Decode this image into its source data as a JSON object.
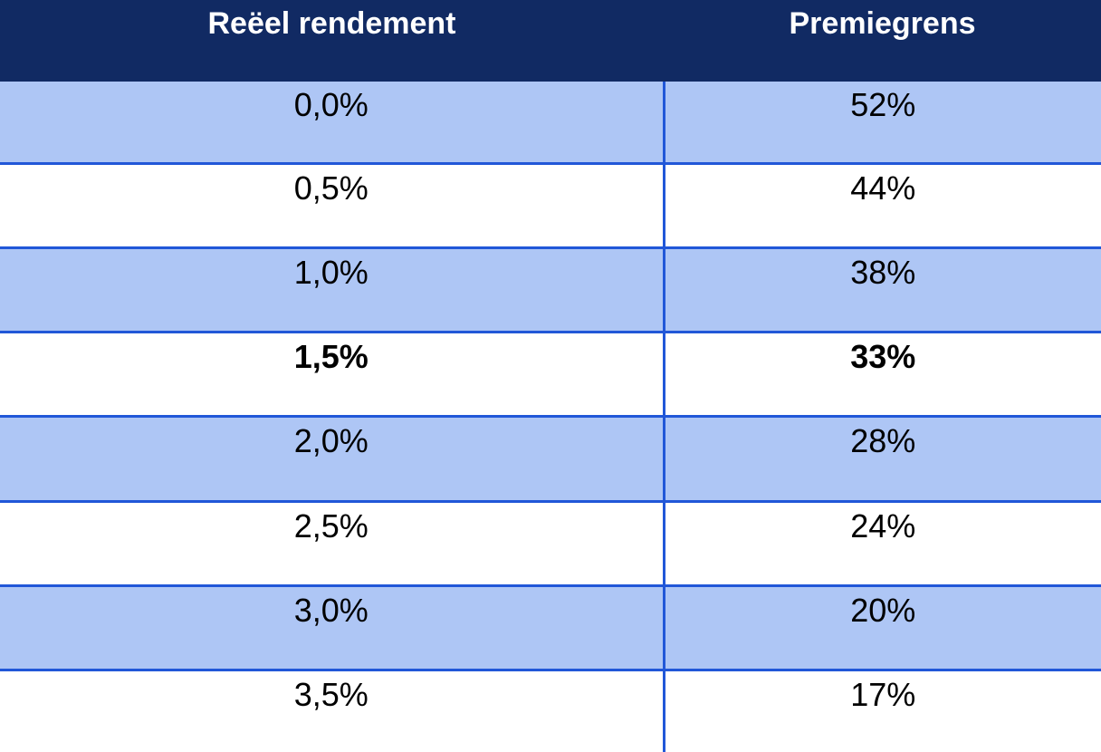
{
  "chart_data": {
    "type": "table",
    "title": "",
    "columns": [
      "Reëel rendement",
      "Premiegrens"
    ],
    "rows": [
      [
        "0,0%",
        "52%"
      ],
      [
        "0,5%",
        "44%"
      ],
      [
        "1,0%",
        "38%"
      ],
      [
        "1,5%",
        "33%"
      ],
      [
        "2,0%",
        "28%"
      ],
      [
        "2,5%",
        "24%"
      ],
      [
        "3,0%",
        "20%"
      ],
      [
        "3,5%",
        "17%"
      ]
    ],
    "rendement_numeric_pct": [
      0.0,
      0.5,
      1.0,
      1.5,
      2.0,
      2.5,
      3.0,
      3.5
    ],
    "premiegrens_numeric_pct": [
      52,
      44,
      38,
      33,
      28,
      24,
      20,
      17
    ],
    "highlighted_row_index": 3,
    "highlight_style": "bold",
    "layout": "striped rows, navy header, blue rules, no outer border"
  },
  "table": {
    "header": {
      "col1": "Reëel rendement",
      "col2": "Premiegrens"
    },
    "rows": [
      {
        "rendement": "0,0%",
        "premiegrens": "52%",
        "bold": false
      },
      {
        "rendement": "0,5%",
        "premiegrens": "44%",
        "bold": false
      },
      {
        "rendement": "1,0%",
        "premiegrens": "38%",
        "bold": false
      },
      {
        "rendement": "1,5%",
        "premiegrens": "33%",
        "bold": true
      },
      {
        "rendement": "2,0%",
        "premiegrens": "28%",
        "bold": false
      },
      {
        "rendement": "2,5%",
        "premiegrens": "24%",
        "bold": false
      },
      {
        "rendement": "3,0%",
        "premiegrens": "20%",
        "bold": false
      },
      {
        "rendement": "3,5%",
        "premiegrens": "17%",
        "bold": false
      }
    ]
  },
  "colors": {
    "header_bg": "#112a63",
    "header_text": "#ffffff",
    "stripe_bg": "#aec6f5",
    "white_bg": "#ffffff",
    "border": "#2157d8",
    "cell_text": "#000000"
  }
}
